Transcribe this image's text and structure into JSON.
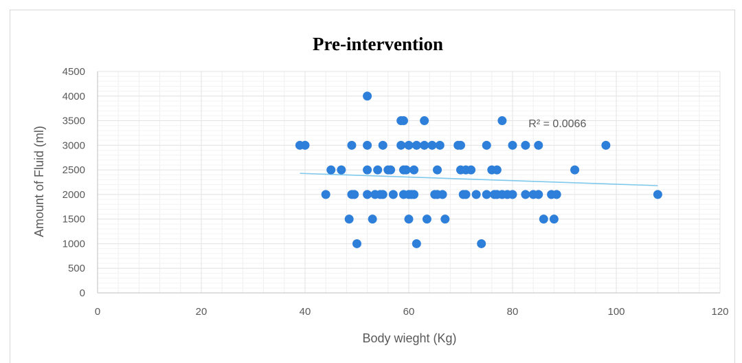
{
  "chart_data": {
    "type": "scatter",
    "title": "Pre-intervention",
    "xlabel": "Body wieght (Kg)",
    "ylabel": "Amount of Fluid (ml)",
    "xlim": [
      0,
      120
    ],
    "ylim": [
      0,
      4500
    ],
    "xticks": [
      0,
      20,
      40,
      60,
      80,
      100,
      120
    ],
    "yticks": [
      0,
      500,
      1000,
      1500,
      2000,
      2500,
      3000,
      3500,
      4000,
      4500
    ],
    "grid": true,
    "legend": "none",
    "colors": {
      "points": "#2e7fd9",
      "trendline": "#7fc9ec",
      "grid": "#e3e3e3"
    },
    "series": [
      {
        "points": [
          [
            39,
            3000
          ],
          [
            40,
            3000
          ],
          [
            44,
            2000
          ],
          [
            45,
            2500
          ],
          [
            47,
            2500
          ],
          [
            48.5,
            1500
          ],
          [
            49,
            3000
          ],
          [
            49,
            2000
          ],
          [
            49.5,
            2000
          ],
          [
            50,
            1000
          ],
          [
            52,
            4000
          ],
          [
            52,
            3000
          ],
          [
            52,
            2500
          ],
          [
            52,
            2000
          ],
          [
            53,
            1500
          ],
          [
            53.5,
            2000
          ],
          [
            54,
            2500
          ],
          [
            54.5,
            2000
          ],
          [
            55,
            3000
          ],
          [
            55,
            2000
          ],
          [
            56,
            2500
          ],
          [
            56.5,
            2500
          ],
          [
            57,
            2000
          ],
          [
            58.5,
            3500
          ],
          [
            59,
            3500
          ],
          [
            58.5,
            3000
          ],
          [
            59,
            2500
          ],
          [
            59,
            2000
          ],
          [
            59.5,
            2500
          ],
          [
            60,
            3000
          ],
          [
            60,
            2000
          ],
          [
            60,
            1500
          ],
          [
            60.5,
            2000
          ],
          [
            61,
            2500
          ],
          [
            61,
            2000
          ],
          [
            61.5,
            3000
          ],
          [
            61.5,
            1000
          ],
          [
            63,
            3500
          ],
          [
            63,
            3000
          ],
          [
            63.5,
            1500
          ],
          [
            64.5,
            3000
          ],
          [
            65,
            2000
          ],
          [
            65.5,
            2500
          ],
          [
            65.5,
            2000
          ],
          [
            66,
            3000
          ],
          [
            66.5,
            2000
          ],
          [
            67,
            1500
          ],
          [
            69.5,
            3000
          ],
          [
            70,
            3000
          ],
          [
            70,
            2500
          ],
          [
            70.5,
            2000
          ],
          [
            71,
            2500
          ],
          [
            71,
            2000
          ],
          [
            72,
            2500
          ],
          [
            73,
            2000
          ],
          [
            74,
            1000
          ],
          [
            75,
            3000
          ],
          [
            75,
            2000
          ],
          [
            76,
            2500
          ],
          [
            76.5,
            2000
          ],
          [
            77,
            2500
          ],
          [
            77,
            2000
          ],
          [
            78,
            3500
          ],
          [
            78,
            2000
          ],
          [
            79,
            2000
          ],
          [
            80,
            3000
          ],
          [
            80,
            2000
          ],
          [
            82.5,
            3000
          ],
          [
            82.5,
            2000
          ],
          [
            84,
            2000
          ],
          [
            85,
            3000
          ],
          [
            85,
            2000
          ],
          [
            86,
            1500
          ],
          [
            87.5,
            2000
          ],
          [
            88,
            1500
          ],
          [
            88.5,
            2000
          ],
          [
            92,
            2500
          ],
          [
            98,
            3000
          ],
          [
            108,
            2000
          ]
        ]
      }
    ],
    "trendline": {
      "x1": 39,
      "y1": 2430,
      "x2": 108,
      "y2": 2180
    },
    "annotation": {
      "text": "R² = 0.0066",
      "x": 86,
      "y": 3450
    }
  }
}
